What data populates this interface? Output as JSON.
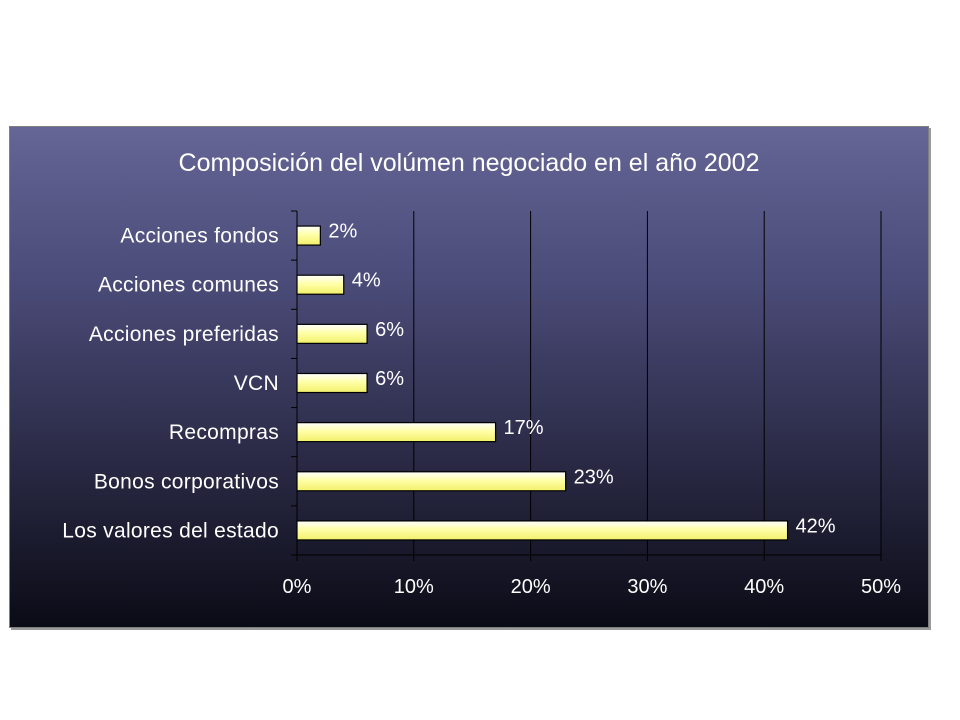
{
  "chart_data": {
    "type": "bar",
    "orientation": "horizontal",
    "title": "Composición del volúmen negociado en el año 2002",
    "categories": [
      "Acciones fondos",
      "Acciones comunes",
      "Acciones preferidas",
      "VCN",
      "Recompras",
      "Bonos corporativos",
      "Los valores del estado"
    ],
    "values": [
      2,
      4,
      6,
      6,
      17,
      23,
      42
    ],
    "data_labels": [
      "2%",
      "4%",
      "6%",
      "6%",
      "17%",
      "23%",
      "42%"
    ],
    "xlim": [
      0,
      50
    ],
    "x_ticks": [
      0,
      10,
      20,
      30,
      40,
      50
    ],
    "x_tick_labels": [
      "0%",
      "10%",
      "20%",
      "30%",
      "40%",
      "50%"
    ],
    "grid": "vertical",
    "legend": "none",
    "colors": {
      "bar_fill_top": "#ffffff",
      "bar_fill_mid": "#ffffa8",
      "bar_fill_bottom": "#f2f06a",
      "background_top": "#656596",
      "background_bottom": "#0b0b16",
      "text": "#ffffff"
    }
  }
}
